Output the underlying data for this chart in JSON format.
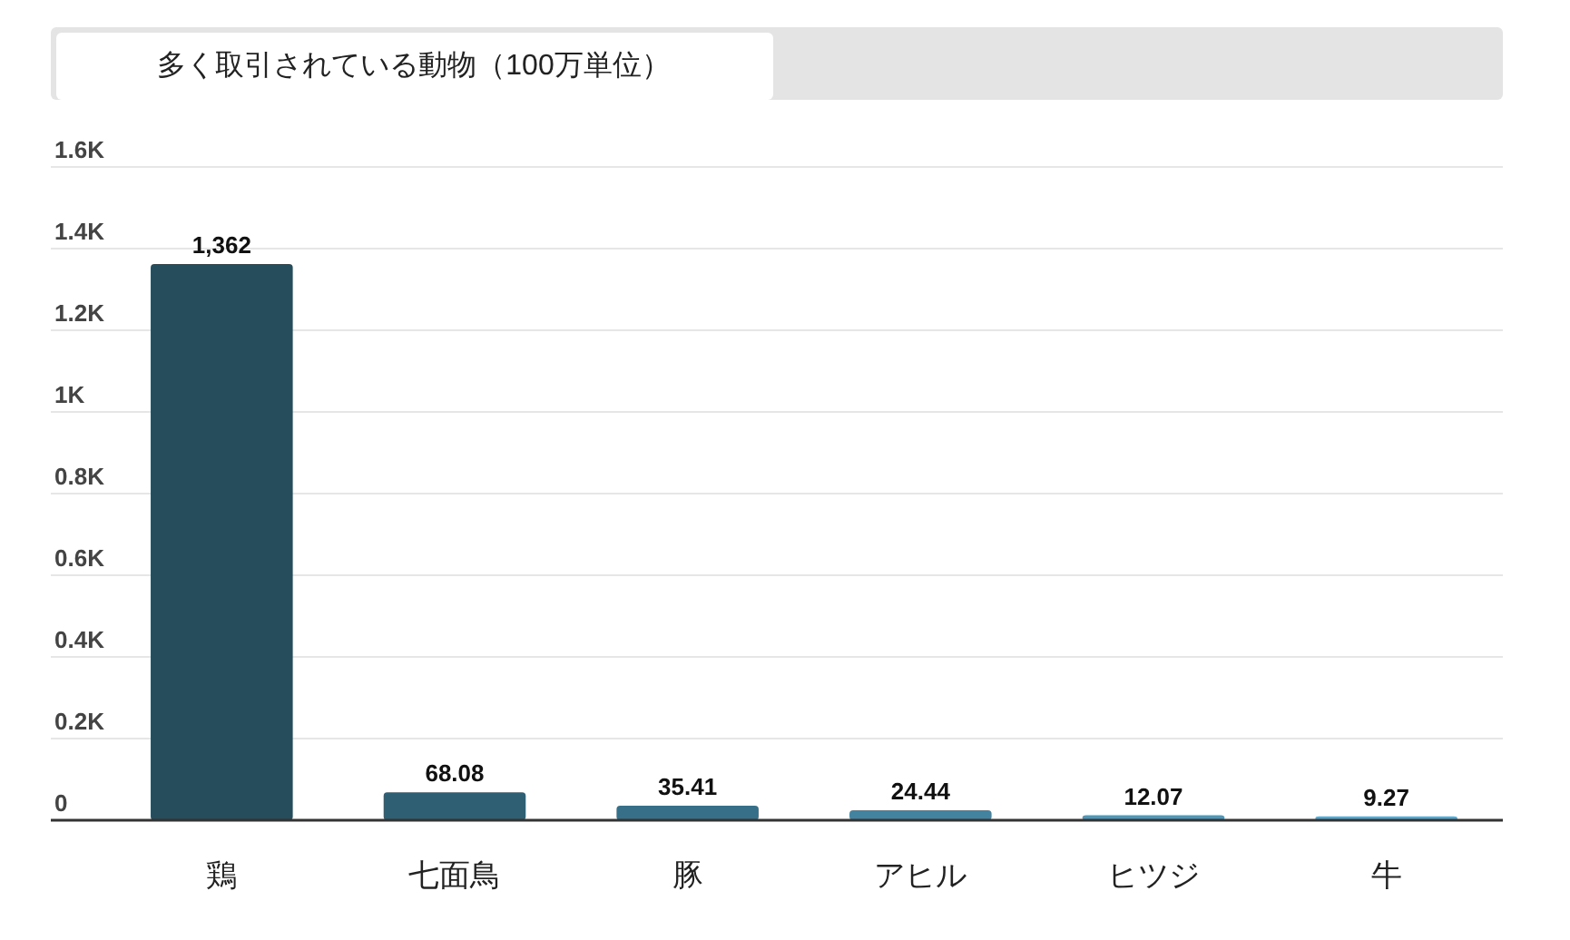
{
  "chart_data": {
    "type": "bar",
    "title": "多く取引されている動物（100万単位）",
    "categories": [
      "鶏",
      "七面鳥",
      "豚",
      "アヒル",
      "ヒツジ",
      "牛"
    ],
    "values": [
      1362,
      68.08,
      35.41,
      24.44,
      12.07,
      9.27
    ],
    "value_labels": [
      "1,362",
      "68.08",
      "35.41",
      "24.44",
      "12.07",
      "9.27"
    ],
    "colors": [
      "#264d5b",
      "#2e5f73",
      "#376f88",
      "#4383a0",
      "#4f97b8",
      "#5ba8cc"
    ],
    "ylim": [
      0,
      1600
    ],
    "yticks": [
      0,
      {
        "value": 200,
        "label": "0.2K"
      },
      {
        "value": 400,
        "label": "0.4K"
      },
      {
        "value": 600,
        "label": "0.6K"
      },
      {
        "value": 800,
        "label": "0.8K"
      },
      {
        "value": 1000,
        "label": "1K"
      },
      {
        "value": 1200,
        "label": "1.2K"
      },
      {
        "value": 1400,
        "label": "1.4K"
      },
      {
        "value": 1600,
        "label": "1.6K"
      }
    ],
    "grid": "y"
  }
}
